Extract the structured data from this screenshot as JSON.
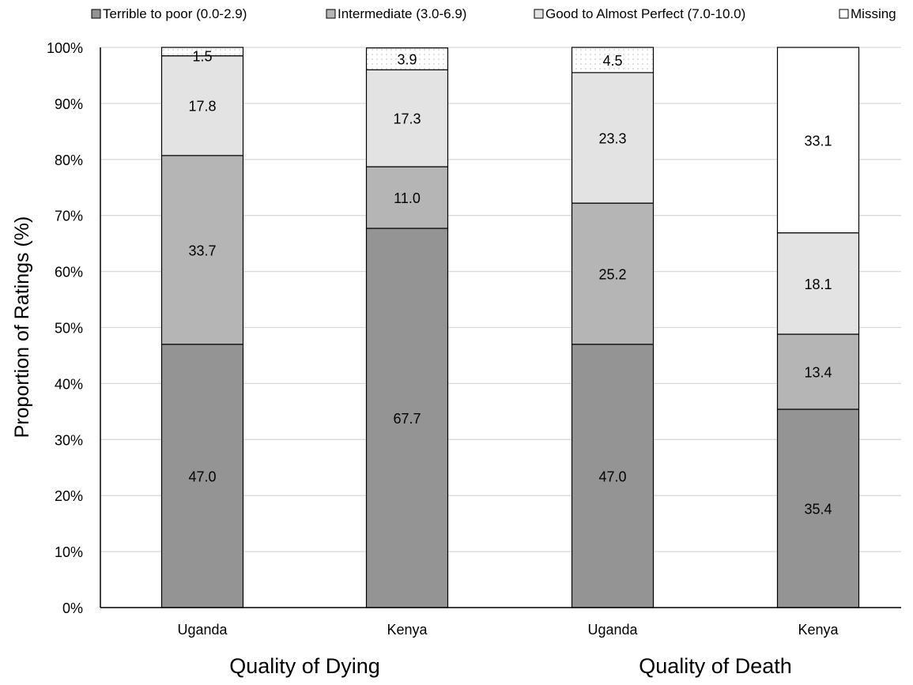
{
  "chart_data": {
    "type": "bar",
    "stacked": true,
    "title": "",
    "xlabel": "",
    "ylabel": "Proportion of Ratings (%)",
    "ylim": [
      0,
      100
    ],
    "yticks": [
      "0%",
      "10%",
      "20%",
      "30%",
      "40%",
      "50%",
      "60%",
      "70%",
      "80%",
      "90%",
      "100%"
    ],
    "grid": true,
    "legend_position": "top",
    "categories": [
      "Uganda",
      "Kenya",
      "Uganda",
      "Kenya"
    ],
    "groups": [
      {
        "label": "Quality of Dying",
        "categories": [
          0,
          1
        ]
      },
      {
        "label": "Quality of Death",
        "categories": [
          2,
          3
        ]
      }
    ],
    "series": [
      {
        "name": "Terrible to poor (0.0-2.9)",
        "color": "#949494",
        "values": [
          47.0,
          67.7,
          47.0,
          35.4
        ]
      },
      {
        "name": "Intermediate (3.0-6.9)",
        "color": "#b5b5b5",
        "values": [
          33.7,
          11.0,
          25.2,
          13.4
        ]
      },
      {
        "name": "Good to Almost Perfect (7.0-10.0)",
        "color": "#e3e3e3",
        "values": [
          17.8,
          17.3,
          23.3,
          18.1
        ]
      },
      {
        "name": "Missing",
        "color": "#ffffff",
        "values": [
          1.5,
          3.9,
          4.5,
          33.1
        ]
      }
    ]
  }
}
